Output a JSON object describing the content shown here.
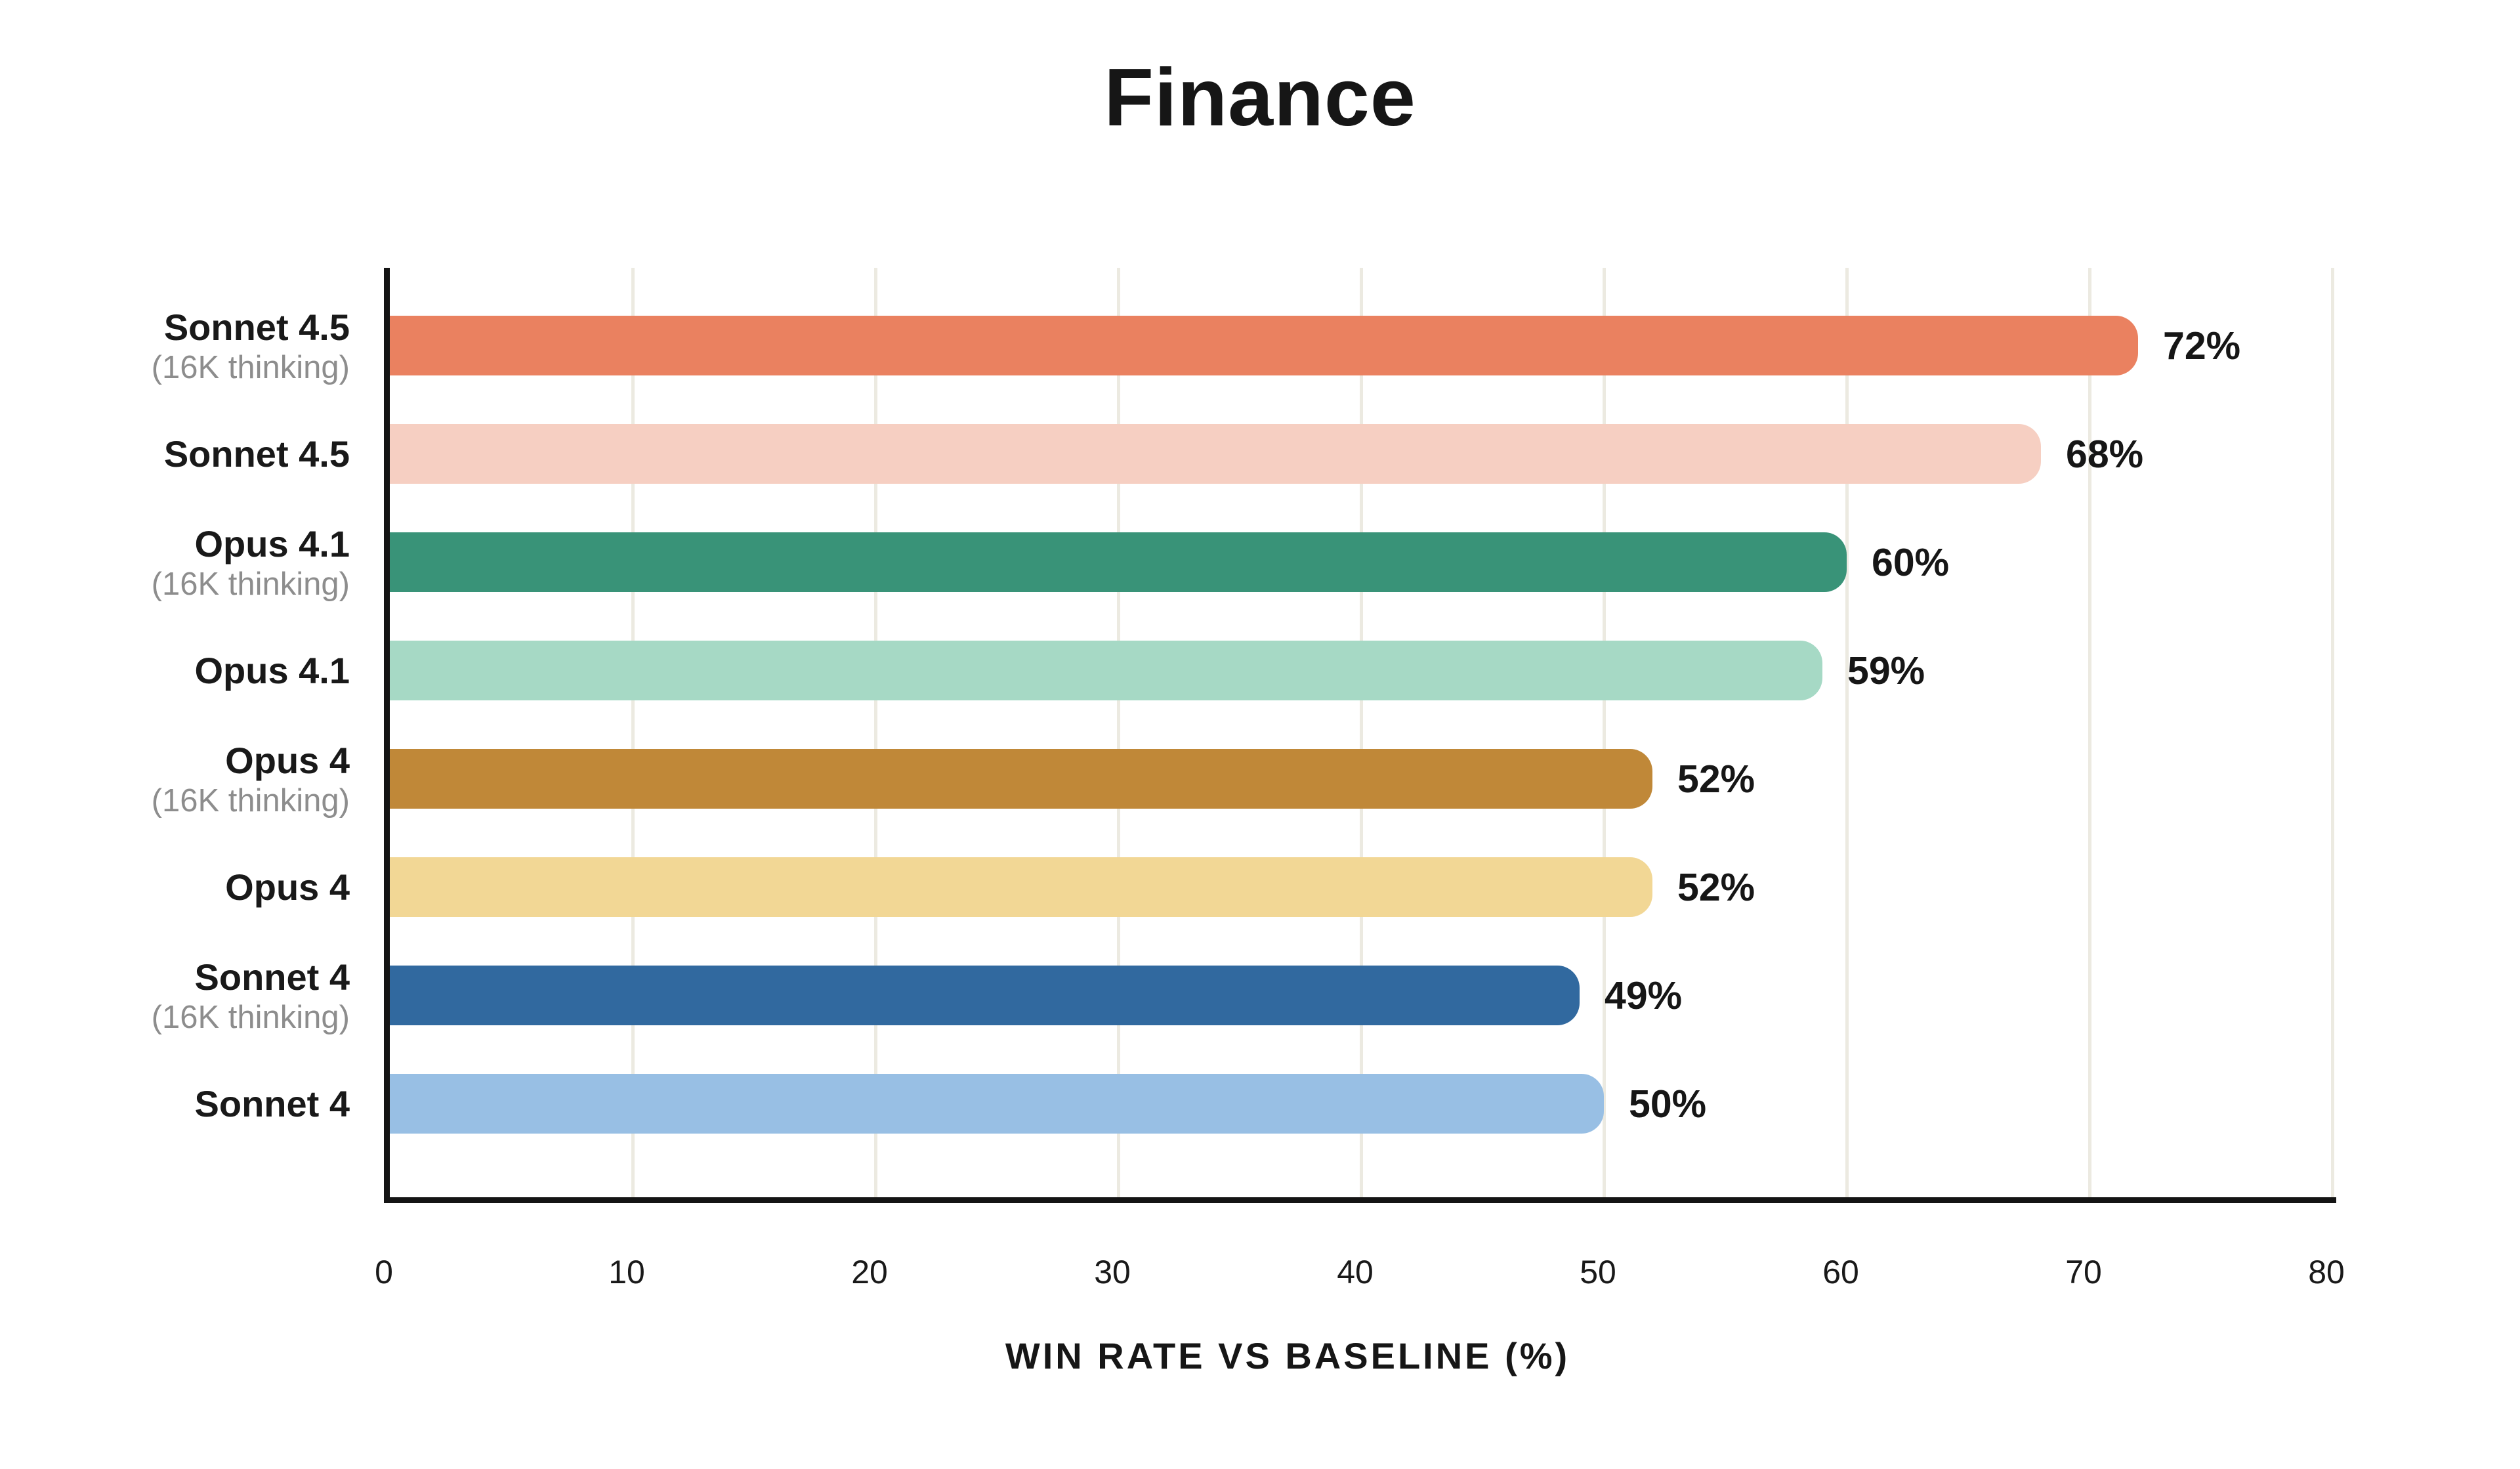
{
  "chart_data": {
    "type": "bar",
    "orientation": "horizontal",
    "title": "Finance",
    "xlabel": "WIN RATE VS BASELINE (%)",
    "xlim": [
      0,
      80
    ],
    "xticks": [
      0,
      10,
      20,
      30,
      40,
      50,
      60,
      70,
      80
    ],
    "grid": true,
    "gridline_color": "#ECEAE1",
    "axis_color": "#141414",
    "background_color": "#FFFFFF",
    "sublabel_color": "#8D8D8D",
    "bars": [
      {
        "label": "Sonnet 4.5",
        "sublabel": "(16K thinking)",
        "value": 72,
        "value_label": "72%",
        "color": "#EA8160"
      },
      {
        "label": "Sonnet 4.5",
        "sublabel": "",
        "value": 68,
        "value_label": "68%",
        "color": "#F6CFC2"
      },
      {
        "label": "Opus 4.1",
        "sublabel": "(16K thinking)",
        "value": 60,
        "value_label": "60%",
        "color": "#399378"
      },
      {
        "label": "Opus 4.1",
        "sublabel": "",
        "value": 59,
        "value_label": "59%",
        "color": "#A6D9C5"
      },
      {
        "label": "Opus 4",
        "sublabel": "(16K thinking)",
        "value": 52,
        "value_label": "52%",
        "color": "#C08838"
      },
      {
        "label": "Opus 4",
        "sublabel": "",
        "value": 52,
        "value_label": "52%",
        "color": "#F2D795"
      },
      {
        "label": "Sonnet 4",
        "sublabel": "(16K thinking)",
        "value": 49,
        "value_label": "49%",
        "color": "#31699F"
      },
      {
        "label": "Sonnet 4",
        "sublabel": "",
        "value": 50,
        "value_label": "50%",
        "color": "#98BFE4"
      }
    ]
  }
}
